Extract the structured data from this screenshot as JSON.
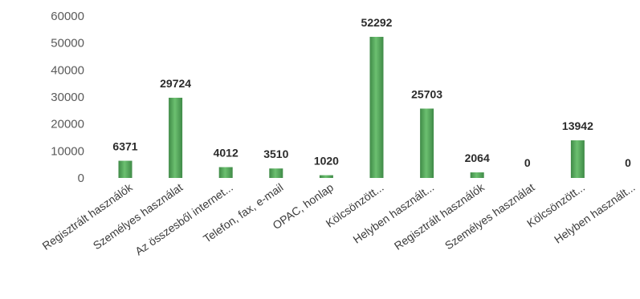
{
  "chart_data": {
    "type": "bar",
    "title": "",
    "xlabel": "",
    "ylabel": "",
    "ylim": [
      0,
      60000
    ],
    "yticks": [
      0,
      10000,
      20000,
      30000,
      40000,
      50000,
      60000
    ],
    "grid": false,
    "legend": "none",
    "categories": [
      "Regisztrált használók",
      "Személyes használat",
      "Az összesből internet...",
      "Telefon, fax, e-mail",
      "OPAC, honlap",
      "Kölcsönzött...",
      "Helyben használt...",
      "Regisztrált használók",
      "Személyes használat",
      "Kölcsönzött...",
      "Helyben használt..."
    ],
    "values": [
      6371,
      29724,
      4012,
      3510,
      1020,
      52292,
      25703,
      2064,
      0,
      13942,
      0
    ],
    "data_labels": [
      "6371",
      "29724",
      "4012",
      "3510",
      "1020",
      "52292",
      "25703",
      "2064",
      "0",
      "13942",
      "0"
    ],
    "colors": {
      "bar": "#5aaf62",
      "bar_highlight": "#8fd08f",
      "bar_shadow": "#3f8a47"
    }
  }
}
